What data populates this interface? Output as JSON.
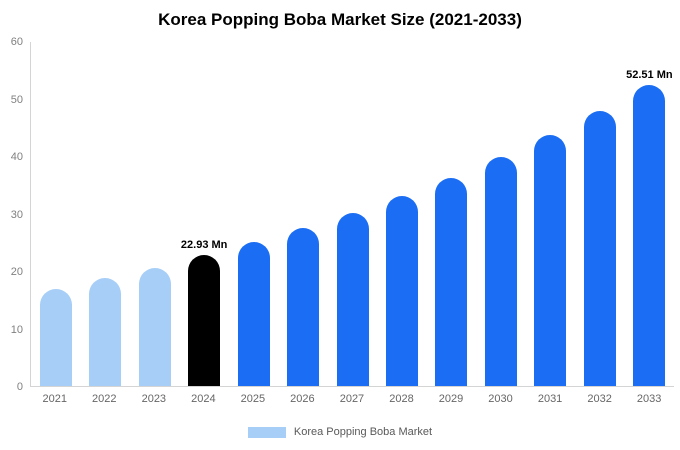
{
  "title": "Korea Popping Boba Market Size (2021-2033)",
  "legend": {
    "label": "Korea Popping Boba Market",
    "swatch_color": "#A7CEF7"
  },
  "colors": {
    "light": "#A7CEF7",
    "highlight": "#000000",
    "primary": "#1B6EF3",
    "axis_line": "#D4D4D4",
    "tick_text": "#808080",
    "value_label_text": "#000000"
  },
  "chart_data": {
    "type": "bar",
    "title": "Korea Popping Boba Market Size (2021-2033)",
    "categories": [
      "2021",
      "2022",
      "2023",
      "2024",
      "2025",
      "2026",
      "2027",
      "2028",
      "2029",
      "2030",
      "2031",
      "2032",
      "2033"
    ],
    "values": [
      16.9,
      18.8,
      20.6,
      22.93,
      25.1,
      27.5,
      30.2,
      33.1,
      36.3,
      39.9,
      43.7,
      47.9,
      52.51
    ],
    "unit": "Mn",
    "bar_colors": [
      "light",
      "light",
      "light",
      "highlight",
      "primary",
      "primary",
      "primary",
      "primary",
      "primary",
      "primary",
      "primary",
      "primary",
      "primary"
    ],
    "annotations": [
      {
        "index": 3,
        "text": "22.93 Mn"
      },
      {
        "index": 12,
        "text": "52.51 Mn"
      }
    ],
    "xlabel": "",
    "ylabel": "",
    "ylim": [
      0,
      60
    ],
    "yticks": [
      0,
      10,
      20,
      30,
      40,
      50,
      60
    ],
    "grid": false,
    "legend_position": "bottom",
    "legend_entries": [
      "Korea Popping Boba Market"
    ]
  }
}
